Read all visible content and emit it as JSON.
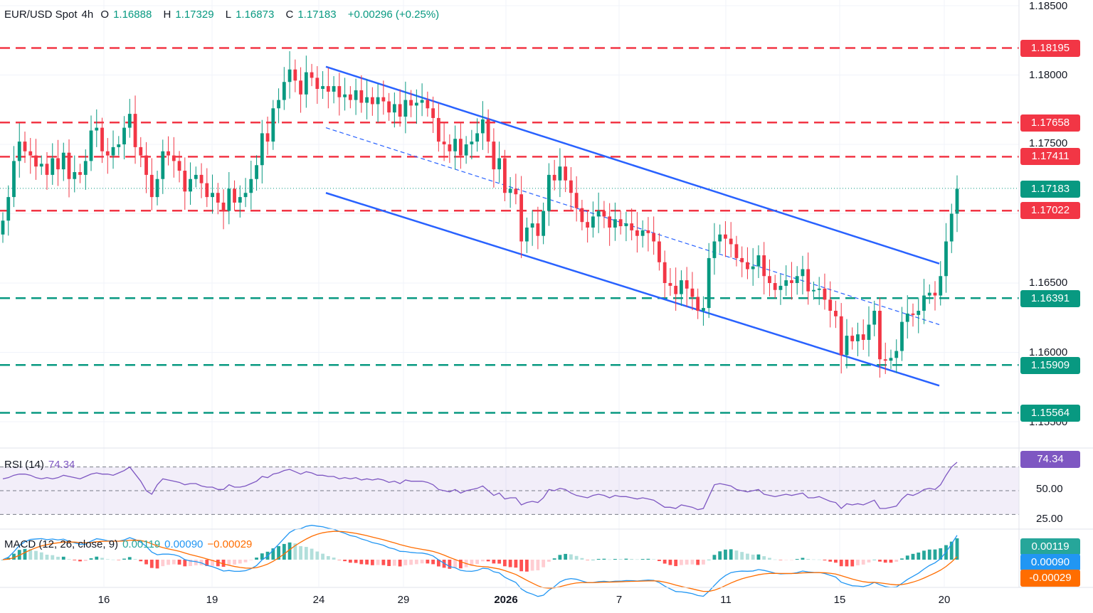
{
  "header": {
    "symbol": "EUR/USD Spot",
    "interval": "4h",
    "o_label": "O",
    "o_value": "1.16888",
    "h_label": "H",
    "h_value": "1.17329",
    "l_label": "L",
    "l_value": "1.16873",
    "c_label": "C",
    "c_value": "1.17183",
    "change": "+0.00296 (+0.25%)"
  },
  "rsi_legend": {
    "label": "RSI (14)",
    "value": "74.34"
  },
  "macd_legend": {
    "label": "MACD (12, 26, close, 9)",
    "histogram": "0.00119",
    "macd": "0.00090",
    "signal": "−0.00029"
  },
  "colors": {
    "up": "#089981",
    "down": "#f23645",
    "channel": "#2962ff",
    "rsi": "#7e57c2",
    "macd_line": "#2196f3",
    "signal_line": "#ff6d00"
  },
  "chart_data": [
    {
      "type": "candlestick",
      "title": "EUR/USD Spot, 4h",
      "x": [
        "16",
        "19",
        "24",
        "29",
        "2026",
        "7",
        "11",
        "15",
        "20"
      ],
      "ylim": [
        1.1545,
        1.1855
      ],
      "y_ticks": [
        "1.18500",
        "1.18000",
        "1.17500",
        "1.16500",
        "1.16000",
        "1.15500"
      ],
      "current_price": "1.17183",
      "levels": [
        {
          "value": "1.18195",
          "color": "#f23645",
          "style": "dashed"
        },
        {
          "value": "1.17658",
          "color": "#f23645",
          "style": "dashed"
        },
        {
          "value": "1.17411",
          "color": "#f23645",
          "style": "dashed"
        },
        {
          "value": "1.17022",
          "color": "#f23645",
          "style": "dashed"
        },
        {
          "value": "1.16391",
          "color": "#089981",
          "style": "dashed"
        },
        {
          "value": "1.15909",
          "color": "#089981",
          "style": "dashed"
        },
        {
          "value": "1.15564",
          "color": "#089981",
          "style": "dashed"
        }
      ],
      "channel": {
        "upper": [
          [
            1.1806,
            1.1664
          ]
        ],
        "middle": [
          [
            1.1762,
            1.162
          ]
        ],
        "lower": [
          [
            1.1715,
            1.1576
          ]
        ]
      },
      "closes": [
        1.1695,
        1.1712,
        1.1738,
        1.1752,
        1.1745,
        1.1742,
        1.1734,
        1.1736,
        1.1728,
        1.174,
        1.1732,
        1.1744,
        1.1725,
        1.173,
        1.1728,
        1.1738,
        1.176,
        1.1762,
        1.1745,
        1.1742,
        1.1748,
        1.175,
        1.1762,
        1.1772,
        1.1748,
        1.1742,
        1.1728,
        1.1712,
        1.1725,
        1.1745,
        1.1742,
        1.1738,
        1.1731,
        1.1716,
        1.1725,
        1.1728,
        1.1722,
        1.1712,
        1.1715,
        1.1708,
        1.1702,
        1.1718,
        1.1708,
        1.1712,
        1.1715,
        1.1725,
        1.1735,
        1.1758,
        1.1752,
        1.1776,
        1.1782,
        1.1795,
        1.1804,
        1.1796,
        1.1786,
        1.1802,
        1.1798,
        1.179,
        1.1792,
        1.1788,
        1.1792,
        1.1784,
        1.1786,
        1.1782,
        1.1789,
        1.178,
        1.1784,
        1.1779,
        1.1784,
        1.1781,
        1.1773,
        1.1779,
        1.177,
        1.1782,
        1.1778,
        1.178,
        1.1782,
        1.1776,
        1.1769,
        1.1752,
        1.175,
        1.1745,
        1.1754,
        1.1742,
        1.175,
        1.1752,
        1.1758,
        1.1768,
        1.1752,
        1.1732,
        1.174,
        1.1715,
        1.1718,
        1.1714,
        1.168,
        1.169,
        1.1693,
        1.1684,
        1.1702,
        1.1728,
        1.1724,
        1.1734,
        1.1724,
        1.1715,
        1.1704,
        1.1694,
        1.169,
        1.1698,
        1.1702,
        1.1698,
        1.169,
        1.1696,
        1.1691,
        1.1693,
        1.1688,
        1.1684,
        1.1688,
        1.1686,
        1.168,
        1.1665,
        1.165,
        1.1648,
        1.1642,
        1.1652,
        1.1646,
        1.164,
        1.163,
        1.1632,
        1.1668,
        1.168,
        1.1685,
        1.1682,
        1.1678,
        1.1668,
        1.1665,
        1.166,
        1.1662,
        1.167,
        1.1655,
        1.165,
        1.1645,
        1.1648,
        1.1652,
        1.165,
        1.1655,
        1.166,
        1.1644,
        1.1645,
        1.1646,
        1.1638,
        1.163,
        1.1626,
        1.1598,
        1.1612,
        1.1608,
        1.1613,
        1.1609,
        1.162,
        1.163,
        1.1595,
        1.1594,
        1.1596,
        1.1601,
        1.1622,
        1.1628,
        1.1627,
        1.163,
        1.1641,
        1.1643,
        1.1641,
        1.1655,
        1.168,
        1.17,
        1.1718
      ]
    },
    {
      "type": "line",
      "title": "RSI (14)",
      "ylim": [
        20,
        80
      ],
      "y_ticks": [
        "50.00",
        "25.00"
      ],
      "bands": [
        70,
        50,
        30
      ],
      "current": "74.34",
      "values": [
        60,
        61,
        63,
        64,
        64,
        63,
        61,
        60,
        61,
        60,
        61,
        63,
        62,
        61,
        60,
        62,
        64,
        65,
        64,
        64,
        63,
        65,
        67,
        70,
        64,
        58,
        50,
        47,
        55,
        60,
        59,
        58,
        57,
        55,
        56,
        56,
        54,
        53,
        53,
        51,
        51,
        55,
        53,
        53,
        54,
        56,
        58,
        62,
        61,
        64,
        65,
        67,
        68,
        66,
        64,
        66,
        65,
        63,
        63,
        62,
        62,
        60,
        61,
        60,
        61,
        59,
        60,
        59,
        60,
        59,
        57,
        58,
        56,
        59,
        58,
        58,
        58,
        57,
        55,
        51,
        50,
        49,
        51,
        48,
        50,
        51,
        52,
        54,
        50,
        46,
        48,
        43,
        44,
        44,
        38,
        40,
        41,
        40,
        44,
        51,
        50,
        52,
        51,
        48,
        46,
        45,
        44,
        46,
        47,
        46,
        44,
        46,
        45,
        45,
        44,
        43,
        44,
        43,
        42,
        39,
        36,
        36,
        35,
        38,
        37,
        36,
        34,
        35,
        45,
        55,
        56,
        55,
        54,
        51,
        50,
        49,
        50,
        51,
        47,
        46,
        45,
        46,
        47,
        46,
        47,
        48,
        44,
        44,
        45,
        43,
        41,
        40,
        35,
        39,
        38,
        39,
        38,
        40,
        42,
        35,
        35,
        36,
        37,
        43,
        47,
        46,
        48,
        51,
        52,
        51,
        55,
        63,
        70,
        74
      ]
    },
    {
      "type": "bar+line",
      "title": "MACD (12, 26, close, 9)",
      "histogram": "0.00119",
      "macd": "0.00090",
      "signal": "-0.00029"
    }
  ],
  "x_labels": [
    "16",
    "19",
    "24",
    "29",
    "2026",
    "7",
    "11",
    "15",
    "20"
  ],
  "price_axis": [
    "1.18500",
    "1.18000",
    "1.17500",
    "1.16500",
    "1.16000",
    "1.15500"
  ]
}
